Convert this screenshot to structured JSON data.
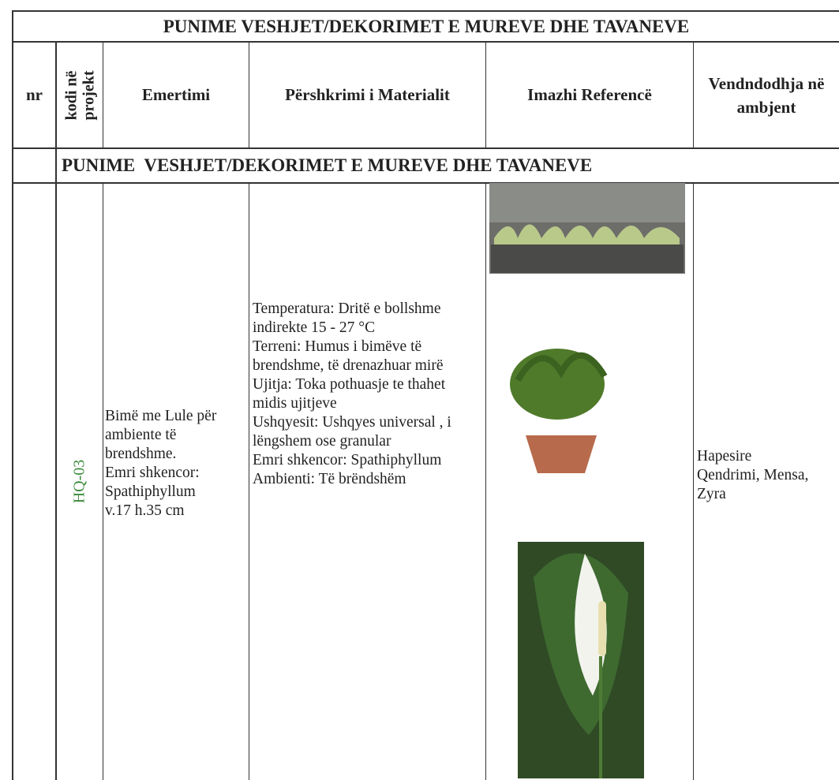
{
  "table": {
    "title": "PUNIME  VESHJET/DEKORIMET E MUREVE DHE TAVANEVE",
    "headers": [
      "nr",
      "kodi në projekt",
      "Emertimi",
      "Përshkrimi i Materialit",
      "Imazhi Referencë",
      "Vendndodhja në ambjent"
    ],
    "section": "PUNIME  VESHJET/DEKORIMET E MUREVE DHE TAVANEVE",
    "row": {
      "code": "HQ-03",
      "name": [
        "Bimë me Lule për ambiente të brendshme.",
        "Emri shkencor: Spathiphyllum",
        "v.17 h.35 cm"
      ],
      "description": [
        "Temperatura: Dritë e bollshme indirekte 15 - 27 °C",
        "Terreni: Humus i bimëve të brendshme, të drenazhuar mirë",
        "Ujitja: Toka pothuasje te thahet midis ujitjeve",
        "Ushqyesit: Ushqyes universal , i lëngshem ose granular",
        "Emri shkencor: Spathiphyllum",
        "Ambienti: Të brëndshëm"
      ],
      "location": "Hapesire Qendrimi, Mensa, Zyra"
    }
  }
}
